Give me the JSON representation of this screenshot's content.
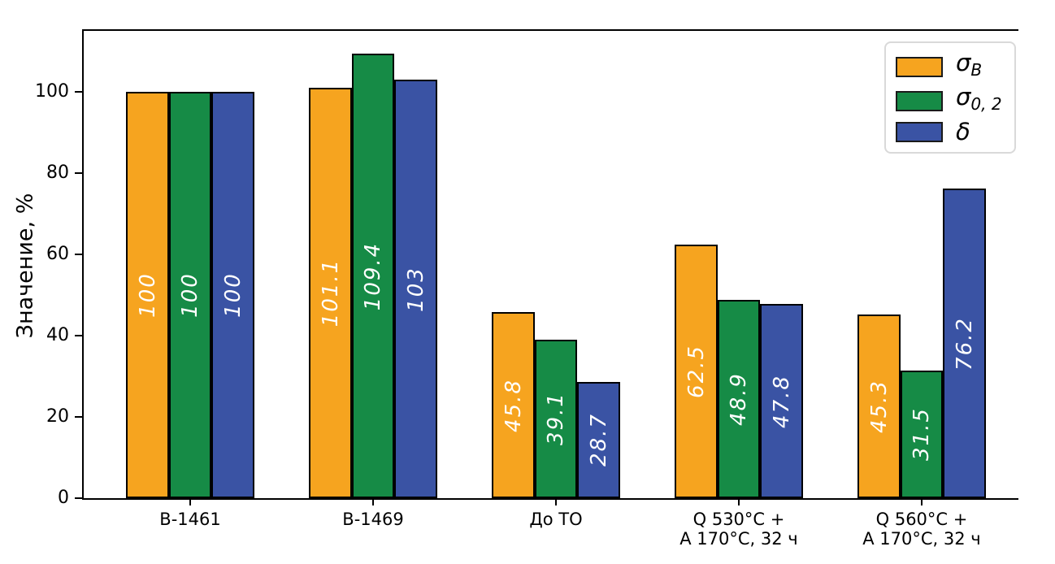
{
  "chart_data": {
    "type": "bar",
    "title": "",
    "ylabel": "Значение, %",
    "xlabel": "",
    "grid": false,
    "legend_position": "upper right",
    "ylim": [
      0,
      115
    ],
    "yticks": [
      0,
      20,
      40,
      60,
      80,
      100
    ],
    "categories": [
      [
        "В-1461"
      ],
      [
        "В-1469"
      ],
      [
        "До ТО"
      ],
      [
        "Q 530°C +",
        "А 170°C, 32 ч"
      ],
      [
        "Q 560°C +",
        "А 170°C, 32 ч"
      ]
    ],
    "series": [
      {
        "name": "sigma-b",
        "label_base": "σ",
        "label_sub": "B",
        "color": "#F6A41F",
        "values": [
          100,
          101.1,
          45.8,
          62.5,
          45.3
        ],
        "value_labels": [
          "100",
          "101.1",
          "45.8",
          "62.5",
          "45.3"
        ]
      },
      {
        "name": "sigma-0-2",
        "label_base": "σ",
        "label_sub": "0, 2",
        "color": "#168B46",
        "values": [
          100,
          109.4,
          39.1,
          48.9,
          31.5
        ],
        "value_labels": [
          "100",
          "109.4",
          "39.1",
          "48.9",
          "31.5"
        ]
      },
      {
        "name": "delta",
        "label_base": "δ",
        "label_sub": "",
        "color": "#3A53A4",
        "values": [
          100,
          103,
          28.7,
          47.8,
          76.2
        ],
        "value_labels": [
          "100",
          "103",
          "28.7",
          "47.8",
          "76.2"
        ]
      }
    ],
    "bar_edge_color": "#000000",
    "bar_label_color": "#ffffff"
  }
}
